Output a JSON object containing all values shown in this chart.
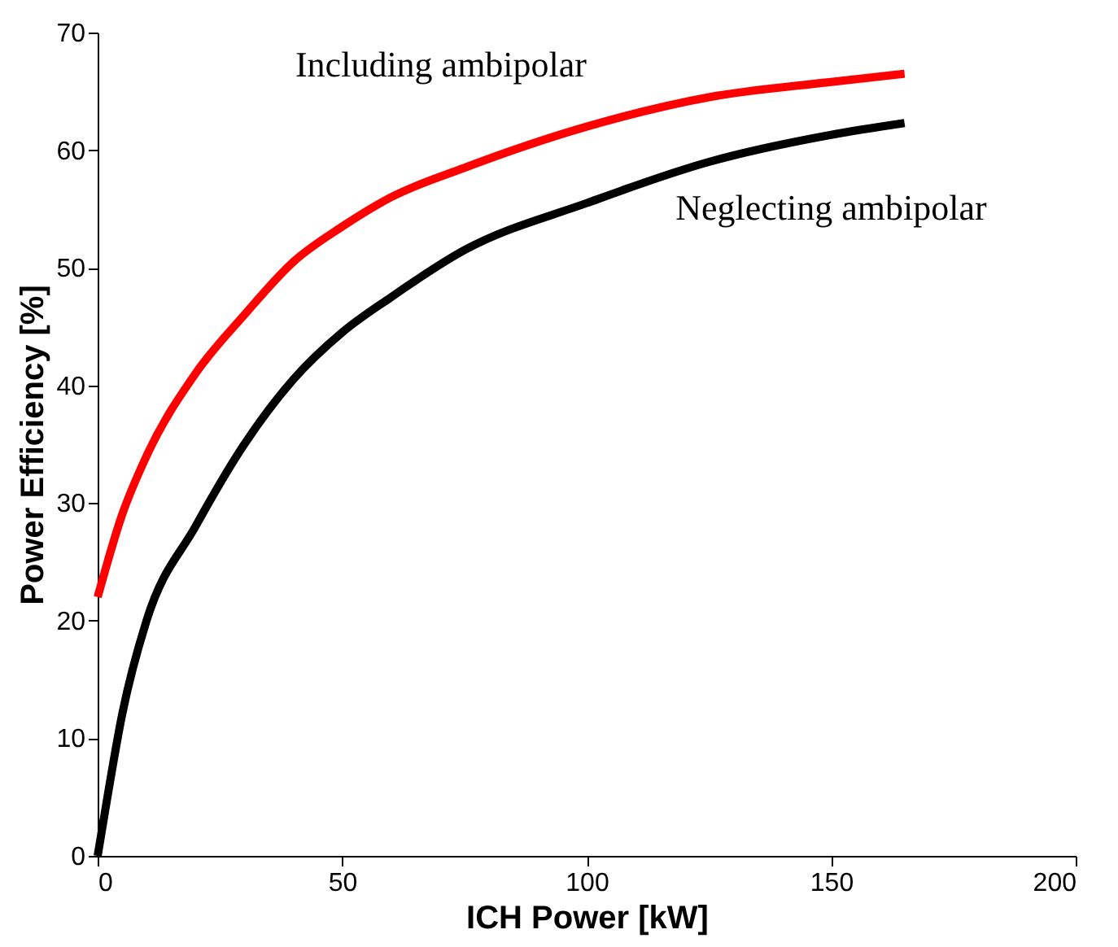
{
  "chart_data": {
    "type": "line",
    "xlabel": "ICH Power [kW]",
    "ylabel": "Power Efficiency [%]",
    "xlim": [
      0,
      200
    ],
    "xticks": [
      0,
      50,
      100,
      150,
      200
    ],
    "ylim": [
      0,
      70
    ],
    "yticks": [
      0,
      10,
      20,
      30,
      40,
      50,
      60,
      70
    ],
    "grid": false,
    "series": [
      {
        "name": "Including ambipolar",
        "color": "#ff0000",
        "x": [
          0,
          5,
          10,
          20,
          30,
          40,
          50,
          60,
          75,
          100,
          125,
          150,
          165
        ],
        "values": [
          22,
          29,
          34,
          41,
          46,
          50.5,
          53.5,
          56,
          58.5,
          62,
          64.5,
          65.8,
          66.5
        ]
      },
      {
        "name": "Neglecting ambipolar",
        "color": "#000000",
        "x": [
          0,
          2,
          5,
          10,
          20,
          30,
          40,
          50,
          60,
          75,
          100,
          125,
          150,
          165
        ],
        "values": [
          0,
          5,
          12,
          20,
          28,
          35,
          40.5,
          44.5,
          47.5,
          51.5,
          55.5,
          59,
          61.3,
          62.3
        ]
      }
    ]
  }
}
